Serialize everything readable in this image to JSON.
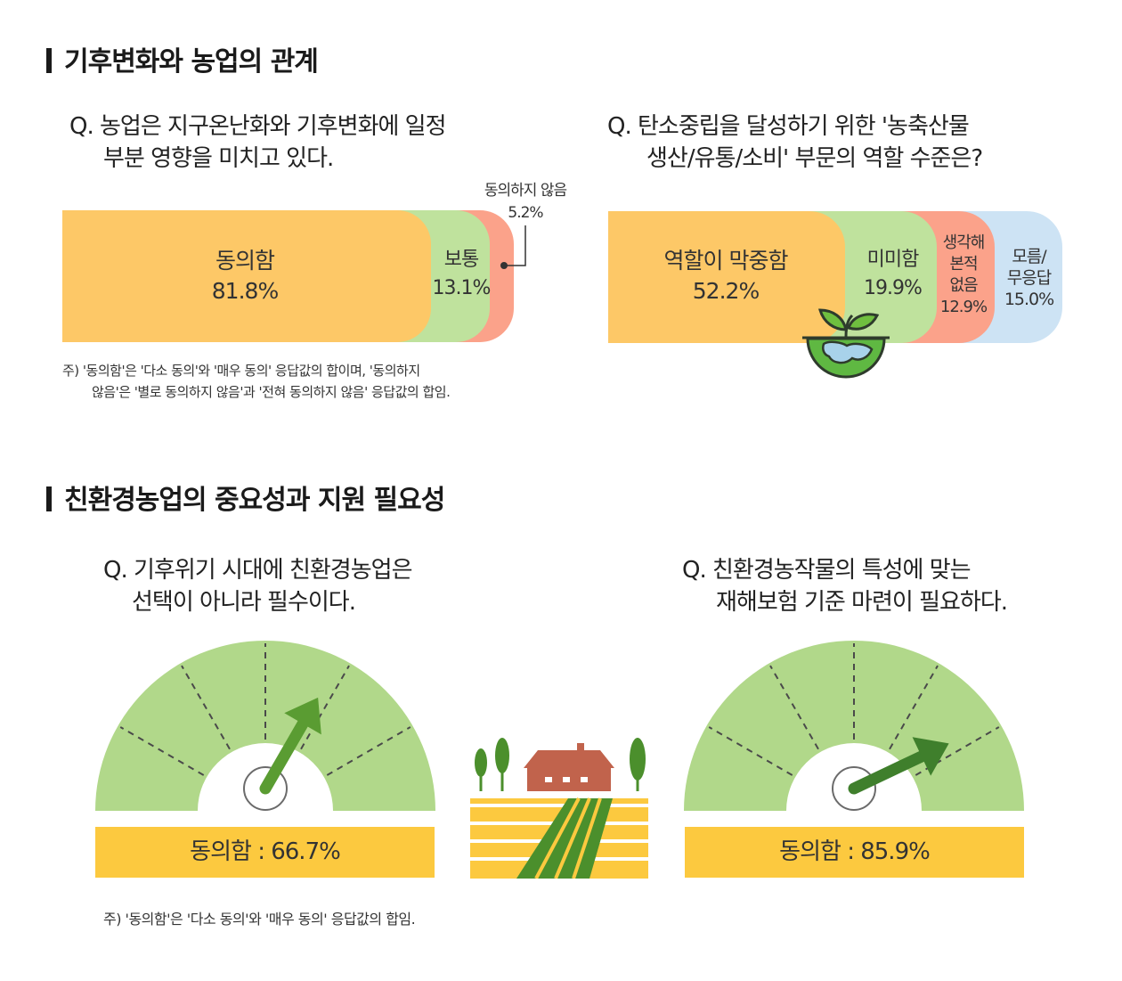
{
  "section1": {
    "title": "기후변화와 농업의 관계"
  },
  "section2": {
    "title": "친환경농업의 중요성과 지원 필요성"
  },
  "chart1": {
    "question_line1": "Q. 농업은 지구온난화와 기후변화에 일정",
    "question_line2": "부분 영향을 미치고 있다.",
    "note_line1": "주) '동의함'은 '다소 동의'와 '매우 동의' 응답값의 합이며, '동의하지",
    "note_line2": "않음'은 '별로 동의하지 않음'과 '전혀 동의하지 않음' 응답값의 합임.",
    "segments": [
      {
        "label": "동의함",
        "value": "81.8%"
      },
      {
        "label": "보통",
        "value": "13.1%"
      },
      {
        "label": "동의하지 않음",
        "value": "5.2%"
      }
    ]
  },
  "chart2": {
    "question_line1": "Q.  탄소중립을 달성하기 위한 '농축산물",
    "question_line2": "생산/유통/소비' 부문의 역할 수준은?",
    "segments": [
      {
        "label": "역할이 막중함",
        "value": "52.2%"
      },
      {
        "label": "미미함",
        "value": "19.9%"
      },
      {
        "label_lines": [
          "생각해",
          "본적",
          "없음"
        ],
        "value": "12.9%"
      },
      {
        "label_lines": [
          "모름/",
          "무응답"
        ],
        "value": "15.0%"
      }
    ]
  },
  "chart3": {
    "question_line1": "Q. 기후위기 시대에 친환경농업은",
    "question_line2": "선택이 아니라 필수이다.",
    "badge": "동의함 : 66.7%"
  },
  "chart4": {
    "question_line1": "Q. 친환경농작물의 특성에 맞는",
    "question_line2": "재해보험 기준 마련이 필요하다.",
    "badge": "동의함 : 85.9%"
  },
  "footnote": "주) '동의함'은 '다소 동의'와 '매우 동의' 응답값의 합임.",
  "chart_data": [
    {
      "type": "bar",
      "orientation": "horizontal-stacked",
      "categories": [
        "동의함",
        "보통",
        "동의하지 않음"
      ],
      "values": [
        81.8,
        13.1,
        5.2
      ],
      "colors": [
        "#fdc867",
        "#bfe29d",
        "#fba28a"
      ]
    },
    {
      "type": "bar",
      "orientation": "horizontal-stacked",
      "categories": [
        "역할이 막중함",
        "미미함",
        "생각해 본적 없음",
        "모름/무응답"
      ],
      "values": [
        52.2,
        19.9,
        12.9,
        15.0
      ],
      "colors": [
        "#fdc867",
        "#bfe29d",
        "#fba28a",
        "#cde3f4"
      ]
    },
    {
      "type": "gauge",
      "categories": [
        "동의함"
      ],
      "values": [
        66.7
      ],
      "unit": "%",
      "colors": [
        "#b1d88a",
        "#5a9c32",
        "#fcc93f"
      ]
    },
    {
      "type": "gauge",
      "categories": [
        "동의함"
      ],
      "values": [
        85.9
      ],
      "unit": "%",
      "colors": [
        "#b1d88a",
        "#3f7f2c",
        "#fcc93f"
      ]
    }
  ]
}
